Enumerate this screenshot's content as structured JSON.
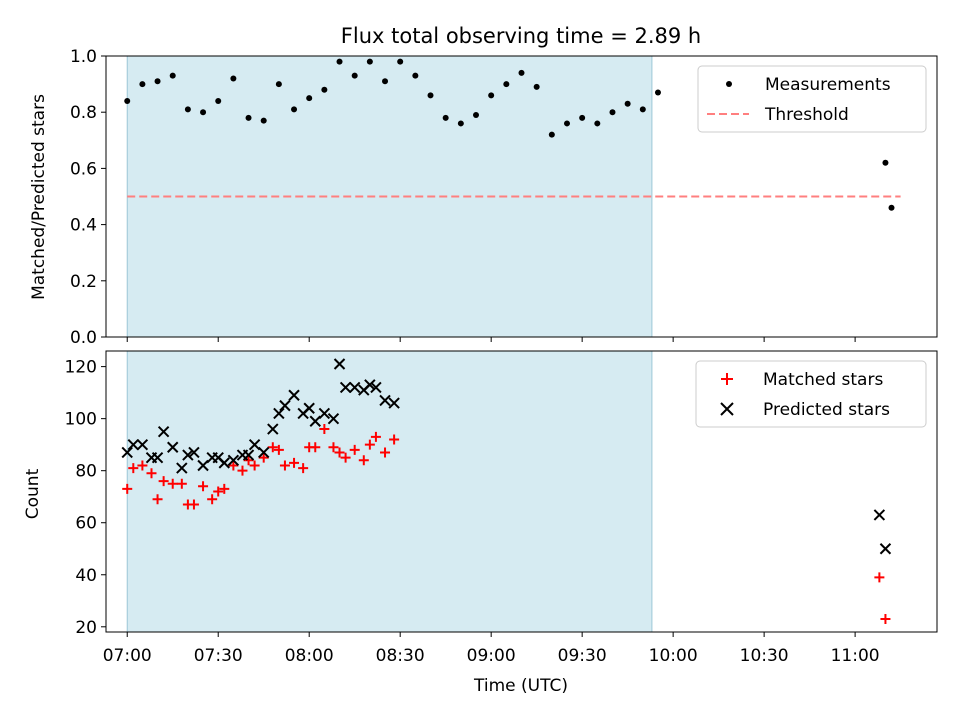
{
  "chart_data": [
    {
      "type": "scatter",
      "title": "Flux total observing time = 2.89 h",
      "xlabel": "",
      "ylabel": "Matched/Predicted stars",
      "ylim": [
        0,
        1.0
      ],
      "yticks": [
        "0.0",
        "0.2",
        "0.4",
        "0.6",
        "0.8",
        "1.0"
      ],
      "shaded_interval": [
        "07:00",
        "09:53"
      ],
      "legend_position": "top-right",
      "legend": [
        "Measurements",
        "Threshold"
      ],
      "threshold": {
        "name": "Threshold",
        "value": 0.5,
        "x_start": "07:00",
        "x_end": "11:15",
        "color": "#ff7f7f",
        "style": "dashed"
      },
      "series": [
        {
          "name": "Measurements",
          "marker": "dot",
          "color": "#000000",
          "points": [
            [
              "07:00",
              0.84
            ],
            [
              "07:05",
              0.9
            ],
            [
              "07:10",
              0.91
            ],
            [
              "07:15",
              0.93
            ],
            [
              "07:20",
              0.81
            ],
            [
              "07:25",
              0.8
            ],
            [
              "07:30",
              0.84
            ],
            [
              "07:35",
              0.92
            ],
            [
              "07:40",
              0.78
            ],
            [
              "07:45",
              0.77
            ],
            [
              "07:50",
              0.9
            ],
            [
              "07:55",
              0.81
            ],
            [
              "08:00",
              0.85
            ],
            [
              "08:05",
              0.88
            ],
            [
              "08:10",
              0.98
            ],
            [
              "08:15",
              0.93
            ],
            [
              "08:20",
              0.98
            ],
            [
              "08:25",
              0.91
            ],
            [
              "08:30",
              0.98
            ],
            [
              "08:35",
              0.93
            ],
            [
              "08:40",
              0.86
            ],
            [
              "08:45",
              0.78
            ],
            [
              "08:50",
              0.76
            ],
            [
              "08:55",
              0.79
            ],
            [
              "09:00",
              0.86
            ],
            [
              "09:05",
              0.9
            ],
            [
              "09:10",
              0.94
            ],
            [
              "09:15",
              0.89
            ],
            [
              "09:20",
              0.72
            ],
            [
              "09:25",
              0.76
            ],
            [
              "09:30",
              0.78
            ],
            [
              "09:35",
              0.76
            ],
            [
              "09:40",
              0.8
            ],
            [
              "09:45",
              0.83
            ],
            [
              "09:50",
              0.81
            ],
            [
              "09:55",
              0.87
            ],
            [
              "11:10",
              0.62
            ],
            [
              "11:12",
              0.46
            ]
          ]
        }
      ]
    },
    {
      "type": "scatter",
      "title": "",
      "xlabel": "Time (UTC)",
      "ylabel": "Count",
      "ylim": [
        18,
        126
      ],
      "yticks": [
        "20",
        "40",
        "60",
        "80",
        "100",
        "120"
      ],
      "xticks": [
        "07:00",
        "07:30",
        "08:00",
        "08:30",
        "09:00",
        "09:30",
        "10:00",
        "10:30",
        "11:00"
      ],
      "xlim": [
        "06:53",
        "11:27"
      ],
      "shaded_interval": [
        "07:00",
        "09:53"
      ],
      "legend_position": "top-right",
      "legend": [
        "Matched stars",
        "Predicted stars"
      ],
      "series": [
        {
          "name": "Matched stars",
          "marker": "plus",
          "color": "#ff0000",
          "points": [
            [
              "07:00",
              73
            ],
            [
              "07:02",
              81
            ],
            [
              "07:05",
              82
            ],
            [
              "07:08",
              79
            ],
            [
              "07:10",
              69
            ],
            [
              "07:12",
              76
            ],
            [
              "07:15",
              75
            ],
            [
              "07:18",
              75
            ],
            [
              "07:20",
              67
            ],
            [
              "07:22",
              67
            ],
            [
              "07:25",
              74
            ],
            [
              "07:28",
              69
            ],
            [
              "07:30",
              72
            ],
            [
              "07:32",
              73
            ],
            [
              "07:35",
              82
            ],
            [
              "07:38",
              80
            ],
            [
              "07:40",
              84
            ],
            [
              "07:42",
              82
            ],
            [
              "07:45",
              85
            ],
            [
              "07:48",
              89
            ],
            [
              "07:50",
              88
            ],
            [
              "07:52",
              82
            ],
            [
              "07:55",
              83
            ],
            [
              "07:58",
              81
            ],
            [
              "08:00",
              89
            ],
            [
              "08:02",
              89
            ],
            [
              "08:05",
              96
            ],
            [
              "08:08",
              89
            ],
            [
              "08:10",
              87
            ],
            [
              "08:12",
              85
            ],
            [
              "08:15",
              88
            ],
            [
              "08:18",
              84
            ],
            [
              "08:20",
              90
            ],
            [
              "08:22",
              93
            ],
            [
              "08:25",
              87
            ],
            [
              "08:28",
              92
            ],
            [
              "11:08",
              39
            ],
            [
              "11:10",
              23
            ]
          ]
        },
        {
          "name": "Predicted stars",
          "marker": "x",
          "color": "#000000",
          "points": [
            [
              "07:00",
              87
            ],
            [
              "07:02",
              90
            ],
            [
              "07:05",
              90
            ],
            [
              "07:08",
              85
            ],
            [
              "07:10",
              85
            ],
            [
              "07:12",
              95
            ],
            [
              "07:15",
              89
            ],
            [
              "07:18",
              81
            ],
            [
              "07:20",
              86
            ],
            [
              "07:22",
              87
            ],
            [
              "07:25",
              82
            ],
            [
              "07:28",
              85
            ],
            [
              "07:30",
              85
            ],
            [
              "07:32",
              83
            ],
            [
              "07:35",
              84
            ],
            [
              "07:38",
              86
            ],
            [
              "07:40",
              86
            ],
            [
              "07:42",
              90
            ],
            [
              "07:45",
              87
            ],
            [
              "07:48",
              96
            ],
            [
              "07:50",
              102
            ],
            [
              "07:52",
              105
            ],
            [
              "07:55",
              109
            ],
            [
              "07:58",
              102
            ],
            [
              "08:00",
              104
            ],
            [
              "08:02",
              99
            ],
            [
              "08:05",
              102
            ],
            [
              "08:08",
              100
            ],
            [
              "08:10",
              121
            ],
            [
              "08:12",
              112
            ],
            [
              "08:15",
              112
            ],
            [
              "08:18",
              111
            ],
            [
              "08:20",
              113
            ],
            [
              "08:22",
              112
            ],
            [
              "08:25",
              107
            ],
            [
              "08:28",
              106
            ],
            [
              "11:08",
              63
            ],
            [
              "11:10",
              50
            ]
          ]
        }
      ]
    }
  ]
}
